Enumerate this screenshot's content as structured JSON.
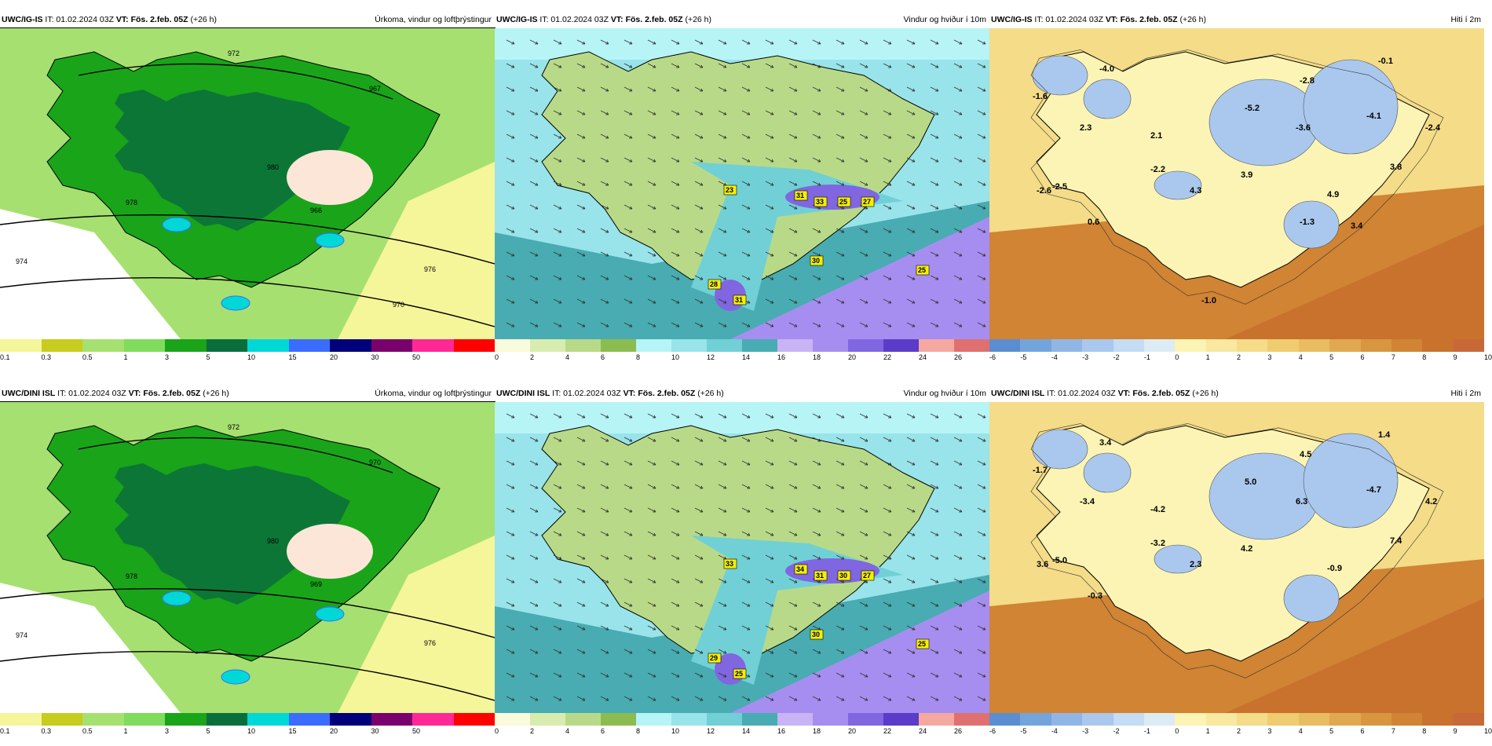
{
  "palettes": {
    "precip": [
      "#f5f59a",
      "#c8cc1e",
      "#a6e070",
      "#7fdc5c",
      "#1aa41a",
      "#0a6e3c",
      "#00d8d8",
      "#3a6cff",
      "#00007a",
      "#7a006e",
      "#ff2896",
      "#ff0000"
    ],
    "wind": [
      "#fafadc",
      "#d8ecb0",
      "#b8da88",
      "#8cbc50",
      "#b6f4f6",
      "#98e4ea",
      "#70d0d6",
      "#48acb2",
      "#c8b4f4",
      "#a68ef0",
      "#8066e0",
      "#5a3cc8",
      "#f4a8a0",
      "#e07070"
    ],
    "temp": [
      "#5a8ed0",
      "#74a4dc",
      "#90b6e6",
      "#aac8ee",
      "#c4dcf4",
      "#dcecf4",
      "#fcf4b4",
      "#f8e8a0",
      "#f4dc88",
      "#f0cc70",
      "#e8bc60",
      "#e0a850",
      "#d8963e",
      "#d08434",
      "#c8722e",
      "#c86838"
    ]
  },
  "rows": [
    {
      "panels": [
        {
          "type": "precip",
          "model": "UWC/IG-IS",
          "it": "IT: 01.02.2024 03Z",
          "vt": "VT: Fös. 2.feb. 05Z",
          "lead": "(+26 h)",
          "product": "Úrkoma, vindur og loftþrýstingur",
          "ticks": [
            "0.1",
            "0.3",
            "0.5",
            "1",
            "3",
            "5",
            "10",
            "15",
            "20",
            "30",
            "50"
          ],
          "pressure_labels": [
            "972",
            "974",
            "976",
            "978",
            "980",
            "966",
            "967",
            "970"
          ],
          "labels": []
        },
        {
          "type": "wind",
          "model": "UWC/IG-IS",
          "it": "IT: 01.02.2024 03Z",
          "vt": "VT: Fös. 2.feb. 05Z",
          "lead": "(+26 h)",
          "product": "Vindur og hviður í 10m",
          "ticks": [
            "0",
            "2",
            "4",
            "6",
            "8",
            "10",
            "12",
            "14",
            "16",
            "18",
            "20",
            "22",
            "24",
            "26"
          ],
          "gusts": [
            "23",
            "31",
            "33",
            "25",
            "27",
            "30",
            "28",
            "31",
            "25"
          ],
          "labels": []
        },
        {
          "type": "temp",
          "model": "UWC/IG-IS",
          "it": "IT: 01.02.2024 03Z",
          "vt": "VT: Fös. 2.feb. 05Z",
          "lead": "(+26 h)",
          "product": "Hiti í 2m",
          "ticks": [
            "-6",
            "-5",
            "-4",
            "-3",
            "-2",
            "-1",
            "0",
            "1",
            "2",
            "3",
            "4",
            "5",
            "6",
            "7",
            "8",
            "9",
            "10"
          ],
          "labels": [
            "-4.0",
            "-1.6",
            "2.3",
            "-2.6",
            "-2.5",
            "-2.2",
            "0.6",
            "2.1",
            "4.3",
            "3.9",
            "-5.2",
            "-2.8",
            "-3.6",
            "-4.1",
            "-2.4",
            "-0.1",
            "3.8",
            "4.9",
            "-1.3",
            "3.4",
            "-1.0"
          ]
        }
      ]
    },
    {
      "panels": [
        {
          "type": "precip",
          "model": "UWC/DINI ISL",
          "it": "IT: 01.02.2024 03Z",
          "vt": "VT: Fös. 2.feb. 05Z",
          "lead": "(+26 h)",
          "product": "Úrkoma, vindur og loftþrýstingur",
          "ticks": [
            "0.1",
            "0.3",
            "0.5",
            "1",
            "3",
            "5",
            "10",
            "15",
            "20",
            "30",
            "50"
          ],
          "pressure_labels": [
            "972",
            "974",
            "976",
            "978",
            "980",
            "969",
            "970"
          ],
          "labels": []
        },
        {
          "type": "wind",
          "model": "UWC/DINI ISL",
          "it": "IT: 01.02.2024 03Z",
          "vt": "VT: Fös. 2.feb. 05Z",
          "lead": "(+26 h)",
          "product": "Vindur og hviður í 10m",
          "ticks": [
            "0",
            "2",
            "4",
            "6",
            "8",
            "10",
            "12",
            "14",
            "16",
            "18",
            "20",
            "22",
            "24",
            "26"
          ],
          "gusts": [
            "33",
            "34",
            "31",
            "30",
            "27",
            "30",
            "29",
            "25",
            "25"
          ],
          "labels": []
        },
        {
          "type": "temp",
          "model": "UWC/DINI ISL",
          "it": "IT: 01.02.2024 03Z",
          "vt": "VT: Fös. 2.feb. 05Z",
          "lead": "(+26 h)",
          "product": "Hiti í 2m",
          "ticks": [
            "-6",
            "-5",
            "-4",
            "-3",
            "-2",
            "-1",
            "0",
            "1",
            "2",
            "3",
            "4",
            "5",
            "6",
            "7",
            "8",
            "9",
            "10"
          ],
          "labels": [
            "3.4",
            "-1.7",
            "-3.4",
            "3.6",
            "-5.0",
            "-3.2",
            "-0.3",
            "-4.2",
            "2.3",
            "4.2",
            "5.0",
            "4.5",
            "6.3",
            "-4.7",
            "4.2",
            "1.4",
            "7.4",
            "-0.9"
          ]
        }
      ]
    }
  ]
}
